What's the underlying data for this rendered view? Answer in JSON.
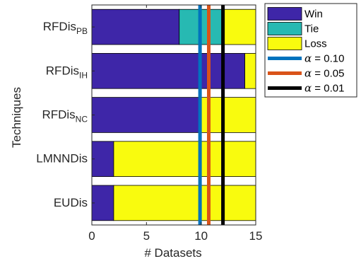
{
  "chart_data": {
    "type": "bar",
    "orientation": "horizontal",
    "stacked": true,
    "categories": [
      {
        "main": "RFDis",
        "sub": "PB"
      },
      {
        "main": "RFDis",
        "sub": "IH"
      },
      {
        "main": "RFDis",
        "sub": "NC"
      },
      {
        "main": "LMNNDis",
        "sub": ""
      },
      {
        "main": "EUDis",
        "sub": ""
      }
    ],
    "series": [
      {
        "name": "Win",
        "color": "#3e26a8",
        "values": [
          8,
          14,
          10,
          2,
          2
        ]
      },
      {
        "name": "Tie",
        "color": "#27b9b2",
        "values": [
          4,
          0,
          0,
          0,
          0
        ]
      },
      {
        "name": "Loss",
        "color": "#f9fb0e",
        "values": [
          3,
          1,
          5,
          13,
          13
        ]
      }
    ],
    "reference_lines": [
      {
        "symbol": "α",
        "label": " = 0.10",
        "x": 9.9,
        "color": "#0072bd"
      },
      {
        "symbol": "α",
        "label": " = 0.05",
        "x": 10.7,
        "color": "#d95319"
      },
      {
        "symbol": "α",
        "label": " = 0.01",
        "x": 12.0,
        "color": "#000000"
      }
    ],
    "xlabel": "# Datasets",
    "ylabel": "Techniques",
    "xlim": [
      0,
      15
    ],
    "xticks": [
      "0",
      "5",
      "10",
      "15"
    ],
    "grid": false,
    "legend_position": "outside-top-right"
  }
}
